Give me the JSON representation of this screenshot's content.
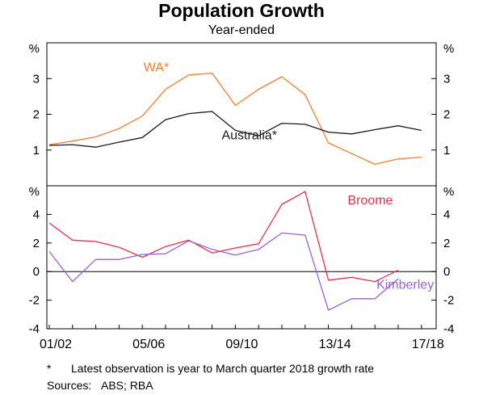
{
  "title": "Population Growth",
  "subtitle": "Year-ended",
  "footnote": {
    "marker": "*",
    "text": "Latest observation is year to March quarter 2018 growth rate"
  },
  "sources": {
    "label": "Sources:",
    "text": "ABS; RBA"
  },
  "colors": {
    "wa": "#f47d30",
    "australia": "#1a1a1a",
    "broome": "#e8314f",
    "kimberley": "#9a61d0",
    "frame": "#000000"
  },
  "chart_data": [
    {
      "type": "line",
      "panel": "top",
      "x": [
        "2001/02",
        "2002/03",
        "2003/04",
        "2004/05",
        "2005/06",
        "2006/07",
        "2007/08",
        "2008/09",
        "2009/10",
        "2010/11",
        "2011/12",
        "2012/13",
        "2013/14",
        "2014/15",
        "2015/16",
        "2016/17",
        "2017/18"
      ],
      "ylim": [
        0,
        4
      ],
      "yticks": [
        1,
        2,
        3
      ],
      "unit_label": "%",
      "series": [
        {
          "name": "WA*",
          "color": "#f47d30",
          "label_pos": [
            2005.6,
            3.2
          ],
          "values": [
            1.15,
            1.25,
            1.37,
            1.6,
            1.95,
            2.7,
            3.1,
            3.15,
            2.25,
            2.7,
            3.05,
            2.55,
            1.2,
            0.9,
            0.6,
            0.75,
            0.8
          ]
        },
        {
          "name": "Australia*",
          "color": "#1a1a1a",
          "label_pos": [
            2009.6,
            1.3
          ],
          "values": [
            1.13,
            1.15,
            1.08,
            1.22,
            1.35,
            1.85,
            2.02,
            2.08,
            1.55,
            1.4,
            1.75,
            1.72,
            1.5,
            1.45,
            1.57,
            1.68,
            1.55
          ]
        }
      ]
    },
    {
      "type": "line",
      "panel": "bottom",
      "x": [
        "2001/02",
        "2002/03",
        "2003/04",
        "2004/05",
        "2005/06",
        "2006/07",
        "2007/08",
        "2008/09",
        "2009/10",
        "2010/11",
        "2011/12",
        "2012/13",
        "2013/14",
        "2014/15",
        "2015/16",
        "2016/17"
      ],
      "xtick_labels": [
        "01/02",
        "05/06",
        "09/10",
        "13/14",
        "17/18"
      ],
      "xtick_positions": [
        "2001/02",
        "2005/06",
        "2009/10",
        "2013/14",
        "2017/18"
      ],
      "ylim": [
        -4,
        6
      ],
      "yticks": [
        -4,
        -2,
        0,
        2,
        4
      ],
      "unit_label": "%",
      "series": [
        {
          "name": "Broome",
          "color": "#e8314f",
          "label_pos": [
            2014.8,
            4.7
          ],
          "values": [
            3.4,
            2.2,
            2.1,
            1.7,
            1.0,
            1.75,
            2.2,
            1.3,
            1.65,
            1.95,
            4.7,
            5.6,
            -0.6,
            -0.4,
            -0.7,
            0.1
          ]
        },
        {
          "name": "Kimberley",
          "color": "#9a61d0",
          "label_pos": [
            2016.3,
            -1.2
          ],
          "values": [
            1.4,
            -0.7,
            0.85,
            0.85,
            1.2,
            1.25,
            2.15,
            1.55,
            1.15,
            1.55,
            2.7,
            2.55,
            -2.7,
            -1.9,
            -1.9,
            -0.5
          ]
        }
      ]
    }
  ]
}
